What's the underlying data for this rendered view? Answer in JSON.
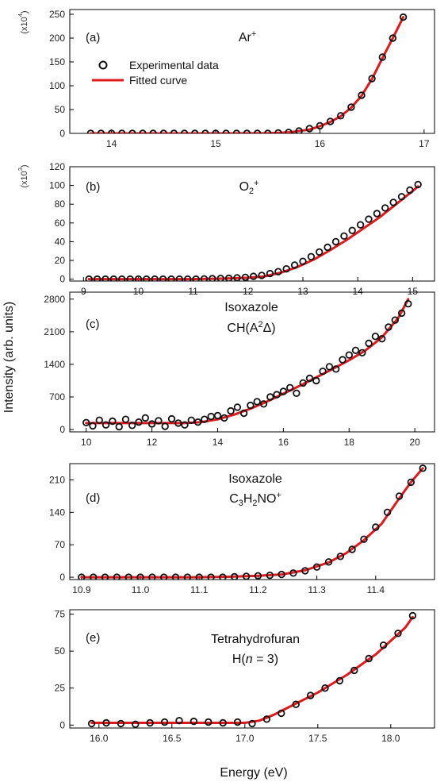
{
  "figure": {
    "ylabel": "Intensity (arb. units)",
    "xlabel": "Energy (eV)"
  },
  "legend": {
    "experimental": "Experimental data",
    "fitted": "Fitted curve"
  },
  "colors": {
    "fit": "#e0191c",
    "marker": "#111111",
    "axis": "#000000"
  },
  "chart_data": [
    {
      "type": "scatter",
      "panel": "(a)",
      "species": [
        {
          "t": "Ar"
        },
        {
          "t": "+",
          "sup": true
        }
      ],
      "multiplier": [
        {
          "t": "(x10"
        },
        {
          "t": "4",
          "sup": true
        },
        {
          "t": ")"
        }
      ],
      "xlim": [
        13.6,
        17.1
      ],
      "ylim": [
        0,
        260
      ],
      "xticks": [
        14,
        15,
        16,
        17
      ],
      "yticks": [
        0,
        50,
        100,
        150,
        200,
        250
      ],
      "legend": true,
      "series": [
        {
          "name": "Experimental data",
          "kind": "markers",
          "x": [
            13.8,
            13.9,
            14.0,
            14.1,
            14.2,
            14.3,
            14.4,
            14.5,
            14.6,
            14.7,
            14.8,
            14.9,
            15.0,
            15.1,
            15.2,
            15.3,
            15.4,
            15.5,
            15.6,
            15.7,
            15.8,
            15.9,
            16.0,
            16.1,
            16.2,
            16.3,
            16.4,
            16.5,
            16.6,
            16.7,
            16.8
          ],
          "y": [
            0,
            0,
            0,
            0,
            0,
            0,
            0,
            0,
            0,
            0,
            0,
            0,
            0,
            0,
            0,
            0,
            0,
            0,
            1,
            2,
            5,
            10,
            16,
            25,
            37,
            55,
            80,
            115,
            160,
            200,
            244
          ]
        },
        {
          "name": "Fitted curve",
          "kind": "line",
          "x": [
            13.8,
            14.5,
            15.0,
            15.5,
            15.7,
            15.9,
            16.0,
            16.1,
            16.2,
            16.3,
            16.4,
            16.5,
            16.6,
            16.7,
            16.8
          ],
          "y": [
            0,
            0,
            0,
            0.5,
            2,
            8,
            15,
            24,
            36,
            54,
            79,
            114,
            158,
            200,
            244
          ]
        }
      ]
    },
    {
      "type": "scatter",
      "panel": "(b)",
      "species": [
        {
          "t": "O"
        },
        {
          "t": "2",
          "sub": true
        },
        {
          "t": "+",
          "sup": true
        }
      ],
      "multiplier": [
        {
          "t": "(x10"
        },
        {
          "t": "3",
          "sup": true
        },
        {
          "t": ")"
        }
      ],
      "xlim": [
        8.75,
        15.4
      ],
      "ylim": [
        -2,
        120
      ],
      "xticks": [
        9,
        10,
        11,
        12,
        13,
        14,
        15
      ],
      "yticks": [
        0,
        20,
        40,
        60,
        80,
        100,
        120
      ],
      "series": [
        {
          "name": "Experimental data",
          "kind": "markers",
          "x": [
            9.1,
            9.25,
            9.4,
            9.55,
            9.7,
            9.85,
            10.0,
            10.15,
            10.3,
            10.45,
            10.6,
            10.75,
            10.9,
            11.05,
            11.2,
            11.35,
            11.5,
            11.65,
            11.8,
            11.95,
            12.1,
            12.25,
            12.4,
            12.55,
            12.7,
            12.85,
            13.0,
            13.15,
            13.3,
            13.45,
            13.6,
            13.75,
            13.9,
            14.05,
            14.2,
            14.35,
            14.5,
            14.65,
            14.8,
            14.95,
            15.1
          ],
          "y": [
            0,
            0,
            0,
            0,
            0,
            0,
            0,
            0,
            0,
            0,
            0,
            0,
            0,
            0,
            0.3,
            0.5,
            0.8,
            1,
            1.5,
            2,
            3,
            4,
            6,
            8,
            11,
            15,
            19,
            24,
            29,
            34,
            40,
            46,
            52,
            58,
            64,
            70,
            76,
            82,
            88,
            95,
            101
          ]
        },
        {
          "name": "Fitted curve",
          "kind": "line",
          "x": [
            9.1,
            10.0,
            11.0,
            11.5,
            12.0,
            12.3,
            12.6,
            12.9,
            13.2,
            13.5,
            13.8,
            14.1,
            14.4,
            14.7,
            15.0,
            15.1
          ],
          "y": [
            0,
            0,
            0,
            0.5,
            1.5,
            3,
            7,
            13,
            21,
            31,
            42,
            54,
            66,
            80,
            94,
            99
          ]
        }
      ]
    },
    {
      "type": "scatter",
      "panel": "(c)",
      "species": [
        {
          "t": "Isoxazole"
        }
      ],
      "species2": [
        {
          "t": "CH(A"
        },
        {
          "t": "2",
          "sup": true
        },
        {
          "t": "Δ)"
        }
      ],
      "xlim": [
        9.5,
        20.6
      ],
      "ylim": [
        -50,
        2950
      ],
      "xticks": [
        10,
        12,
        14,
        16,
        18,
        20
      ],
      "yticks": [
        0,
        700,
        1400,
        2100,
        2800
      ],
      "series": [
        {
          "name": "Experimental data",
          "kind": "markers",
          "x": [
            10.0,
            10.2,
            10.4,
            10.6,
            10.8,
            11.0,
            11.2,
            11.4,
            11.6,
            11.8,
            12.0,
            12.2,
            12.4,
            12.6,
            12.8,
            13.0,
            13.2,
            13.4,
            13.6,
            13.8,
            14.0,
            14.2,
            14.4,
            14.6,
            14.8,
            15.0,
            15.2,
            15.4,
            15.6,
            15.8,
            16.0,
            16.2,
            16.4,
            16.6,
            16.8,
            17.0,
            17.2,
            17.4,
            17.6,
            17.8,
            18.0,
            18.2,
            18.4,
            18.6,
            18.8,
            19.0,
            19.2,
            19.4,
            19.6,
            19.8
          ],
          "y": [
            150,
            80,
            200,
            100,
            180,
            60,
            220,
            90,
            160,
            250,
            120,
            190,
            70,
            230,
            140,
            100,
            200,
            160,
            220,
            280,
            300,
            250,
            400,
            480,
            350,
            520,
            600,
            550,
            700,
            750,
            820,
            900,
            780,
            1000,
            1100,
            1050,
            1250,
            1350,
            1300,
            1500,
            1600,
            1700,
            1650,
            1850,
            2000,
            1950,
            2200,
            2350,
            2500,
            2700
          ]
        },
        {
          "name": "Fitted curve",
          "kind": "line",
          "x": [
            10.0,
            11.0,
            12.0,
            13.0,
            13.5,
            14.0,
            14.5,
            15.0,
            15.5,
            16.0,
            16.5,
            17.0,
            17.5,
            18.0,
            18.5,
            19.0,
            19.5,
            19.8
          ],
          "y": [
            140,
            140,
            140,
            140,
            160,
            220,
            320,
            450,
            600,
            770,
            940,
            1120,
            1300,
            1490,
            1700,
            1980,
            2400,
            2800
          ]
        }
      ]
    },
    {
      "type": "scatter",
      "panel": "(d)",
      "species": [
        {
          "t": "Isoxazole"
        }
      ],
      "species2": [
        {
          "t": "C"
        },
        {
          "t": "3",
          "sub": true
        },
        {
          "t": "H"
        },
        {
          "t": "2",
          "sub": true
        },
        {
          "t": "NO"
        },
        {
          "t": "+",
          "sup": true
        }
      ],
      "xlim": [
        10.88,
        11.5
      ],
      "ylim": [
        -5,
        245
      ],
      "xticks": [
        10.9,
        11.0,
        11.1,
        11.2,
        11.3,
        11.4
      ],
      "xtick_labels": [
        "10.9",
        "11.0",
        "11.1",
        "11.2",
        "11.3",
        "11.4"
      ],
      "yticks": [
        0,
        70,
        140,
        210
      ],
      "series": [
        {
          "name": "Experimental data",
          "kind": "markers",
          "x": [
            10.9,
            10.92,
            10.94,
            10.96,
            10.98,
            11.0,
            11.02,
            11.04,
            11.06,
            11.08,
            11.1,
            11.12,
            11.14,
            11.16,
            11.18,
            11.2,
            11.22,
            11.24,
            11.26,
            11.28,
            11.3,
            11.32,
            11.34,
            11.36,
            11.38,
            11.4,
            11.42,
            11.44,
            11.46,
            11.48
          ],
          "y": [
            0,
            0,
            0,
            0,
            0,
            0,
            0,
            0,
            0,
            0,
            0,
            0,
            0,
            1,
            2,
            3,
            4,
            6,
            9,
            14,
            22,
            33,
            45,
            60,
            82,
            108,
            140,
            175,
            205,
            235
          ]
        },
        {
          "name": "Fitted curve",
          "kind": "line",
          "x": [
            10.9,
            11.0,
            11.1,
            11.15,
            11.2,
            11.24,
            11.28,
            11.32,
            11.35,
            11.38,
            11.41,
            11.44,
            11.46,
            11.48
          ],
          "y": [
            0,
            0,
            0,
            1,
            3,
            6,
            15,
            32,
            52,
            80,
            115,
            170,
            205,
            235
          ]
        }
      ]
    },
    {
      "type": "scatter",
      "panel": "(e)",
      "species": [
        {
          "t": "Tetrahydrofuran"
        }
      ],
      "species2": [
        {
          "t": "H("
        },
        {
          "t": "n",
          "it": true
        },
        {
          "t": " = 3)"
        }
      ],
      "xlim": [
        15.8,
        18.3
      ],
      "ylim": [
        -2,
        78
      ],
      "xticks": [
        16.0,
        16.5,
        17.0,
        17.5,
        18.0
      ],
      "xtick_labels": [
        "16.0",
        "16.5",
        "17.0",
        "17.5",
        "18.0"
      ],
      "yticks": [
        0,
        25,
        50,
        75
      ],
      "series": [
        {
          "name": "Experimental data",
          "kind": "markers",
          "x": [
            15.95,
            16.05,
            16.15,
            16.25,
            16.35,
            16.45,
            16.55,
            16.65,
            16.75,
            16.85,
            16.95,
            17.05,
            17.15,
            17.25,
            17.35,
            17.45,
            17.55,
            17.65,
            17.75,
            17.85,
            17.95,
            18.05,
            18.15
          ],
          "y": [
            1,
            1.5,
            1,
            0.5,
            1.5,
            2,
            3,
            2.5,
            2,
            1.5,
            2,
            1,
            4,
            8,
            14,
            20,
            25,
            30,
            37,
            45,
            54,
            62,
            74
          ]
        },
        {
          "name": "Fitted curve",
          "kind": "line",
          "x": [
            15.95,
            16.2,
            16.5,
            16.8,
            17.0,
            17.1,
            17.2,
            17.3,
            17.4,
            17.5,
            17.6,
            17.7,
            17.8,
            17.9,
            18.0,
            18.1,
            18.15
          ],
          "y": [
            1.5,
            1.5,
            1.5,
            1.5,
            1.5,
            3,
            7,
            12,
            17,
            22,
            28,
            34,
            41,
            48,
            57,
            66,
            73
          ]
        }
      ]
    }
  ]
}
